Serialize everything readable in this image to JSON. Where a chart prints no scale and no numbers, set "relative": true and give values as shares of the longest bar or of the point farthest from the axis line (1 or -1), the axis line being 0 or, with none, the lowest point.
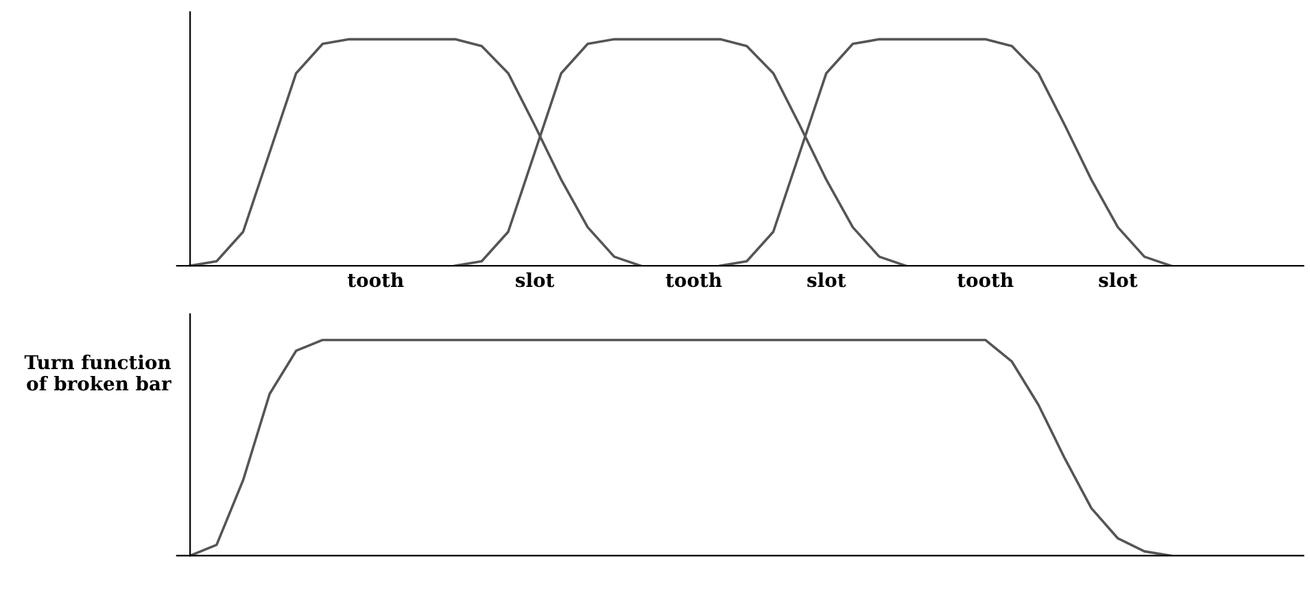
{
  "chart_data": [
    {
      "type": "line",
      "relative": true,
      "tick_labels": "x",
      "marker": "none",
      "line_style": "solid",
      "categories": [
        null,
        null,
        null,
        null,
        null,
        null,
        null,
        "tooth",
        null,
        null,
        null,
        null,
        null,
        "slot",
        null,
        null,
        null,
        null,
        null,
        "tooth",
        null,
        null,
        null,
        null,
        "slot",
        null,
        null,
        null,
        null,
        null,
        "tooth",
        null,
        null,
        null,
        null,
        "slot",
        null,
        null,
        null,
        null,
        null,
        null
      ],
      "series": [
        {
          "color": "#555555",
          "values": [
            0,
            0.02,
            0.15,
            0.5,
            0.85,
            0.98,
            1,
            1,
            1,
            1,
            1,
            0.97,
            0.85,
            0.62,
            0.38,
            0.17,
            0.04,
            0,
            null,
            null,
            null,
            null,
            null,
            null,
            null,
            null,
            null,
            null,
            null,
            null,
            null,
            null,
            null,
            null,
            null,
            null,
            null,
            null,
            null,
            null,
            null,
            null
          ]
        },
        {
          "color": "#555555",
          "values": [
            null,
            null,
            null,
            null,
            null,
            null,
            null,
            null,
            null,
            null,
            0,
            0.02,
            0.15,
            0.5,
            0.85,
            0.98,
            1,
            1,
            1,
            1,
            1,
            0.97,
            0.85,
            0.62,
            0.38,
            0.17,
            0.04,
            0,
            null,
            null,
            null,
            null,
            null,
            null,
            null,
            null,
            null,
            null,
            null,
            null,
            null,
            null
          ]
        },
        {
          "color": "#555555",
          "values": [
            null,
            null,
            null,
            null,
            null,
            null,
            null,
            null,
            null,
            null,
            null,
            null,
            null,
            null,
            null,
            null,
            null,
            null,
            null,
            null,
            0,
            0.02,
            0.15,
            0.5,
            0.85,
            0.98,
            1,
            1,
            1,
            1,
            1,
            0.97,
            0.85,
            0.62,
            0.38,
            0.17,
            0.04,
            0,
            null,
            null,
            null,
            null
          ]
        }
      ]
    },
    {
      "type": "line",
      "relative": true,
      "tick_labels": "y",
      "marker": "none",
      "line_style": "solid",
      "ylabel": "Turn function\nof broken bar",
      "categories": [
        null,
        null,
        null,
        null,
        null,
        null,
        null,
        null,
        null,
        null,
        null,
        null,
        null,
        null,
        null,
        null,
        null,
        null,
        null,
        null,
        null,
        null,
        null,
        null,
        null,
        null,
        null,
        null,
        null,
        null,
        null,
        null,
        null,
        null,
        null,
        null,
        null,
        null,
        null,
        null,
        null,
        null
      ],
      "series": [
        {
          "color": "#555555",
          "values": [
            0,
            0.05,
            0.35,
            0.75,
            0.95,
            1,
            1,
            1,
            1,
            1,
            1,
            1,
            1,
            1,
            1,
            1,
            1,
            1,
            1,
            1,
            1,
            1,
            1,
            1,
            1,
            1,
            1,
            1,
            1,
            1,
            1,
            0.9,
            0.7,
            0.45,
            0.22,
            0.08,
            0.02,
            0,
            null,
            null,
            null,
            null
          ]
        }
      ]
    }
  ]
}
